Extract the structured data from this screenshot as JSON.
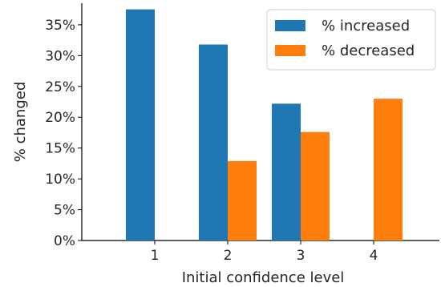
{
  "chart_data": {
    "type": "bar",
    "categories": [
      "1",
      "2",
      "3",
      "4"
    ],
    "series": [
      {
        "name": "% increased",
        "color": "#1f77b4",
        "values": [
          37.5,
          31.8,
          22.2,
          0
        ]
      },
      {
        "name": "% decreased",
        "color": "#ff7f0e",
        "values": [
          0,
          12.9,
          17.6,
          23.0
        ]
      }
    ],
    "xlabel": "Initial confidence level",
    "ylabel": "% changed",
    "ylim": [
      0,
      38.5
    ],
    "yticks": [
      0,
      5,
      10,
      15,
      20,
      25,
      30,
      35
    ],
    "ytick_format": "%",
    "grid": false,
    "legend": "top-right"
  }
}
